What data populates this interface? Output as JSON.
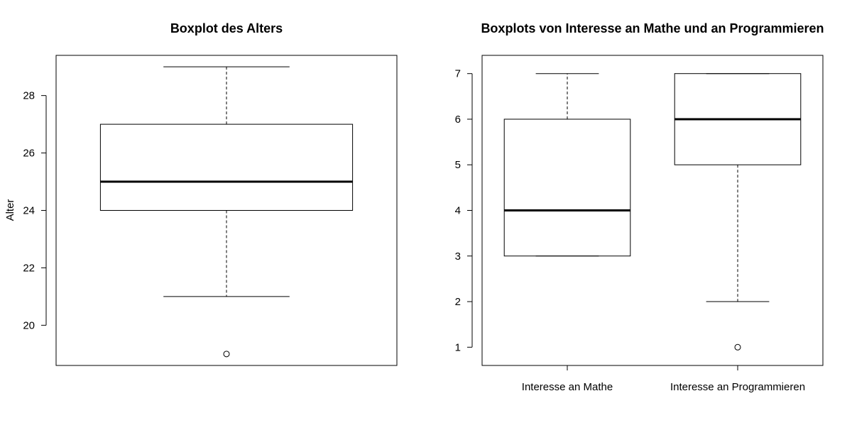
{
  "chart_data": [
    {
      "type": "boxplot",
      "title": "Boxplot des Alters",
      "xlabel": "",
      "ylabel": "Alter",
      "ylim": [
        18.6,
        29.4
      ],
      "yticks": [
        20,
        22,
        24,
        26,
        28
      ],
      "show_x_axis": false,
      "grid": false,
      "boxes": [
        {
          "label": "",
          "whisker_low": 21,
          "q1": 24,
          "median": 25,
          "q3": 27,
          "whisker_high": 29,
          "outliers": [
            19
          ]
        }
      ]
    },
    {
      "type": "boxplot",
      "title": "Boxplots von Interesse an Mathe und an Programmieren",
      "xlabel": "",
      "ylabel": "",
      "ylim": [
        0.6,
        7.4
      ],
      "yticks": [
        1,
        2,
        3,
        4,
        5,
        6,
        7
      ],
      "show_x_axis": true,
      "grid": false,
      "boxes": [
        {
          "label": "Interesse an Mathe",
          "whisker_low": 3,
          "q1": 3,
          "median": 4,
          "q3": 6,
          "whisker_high": 7,
          "outliers": []
        },
        {
          "label": "Interesse an Programmieren",
          "whisker_low": 2,
          "q1": 5,
          "median": 6,
          "q3": 7,
          "whisker_high": 7,
          "outliers": [
            1
          ]
        }
      ]
    }
  ]
}
